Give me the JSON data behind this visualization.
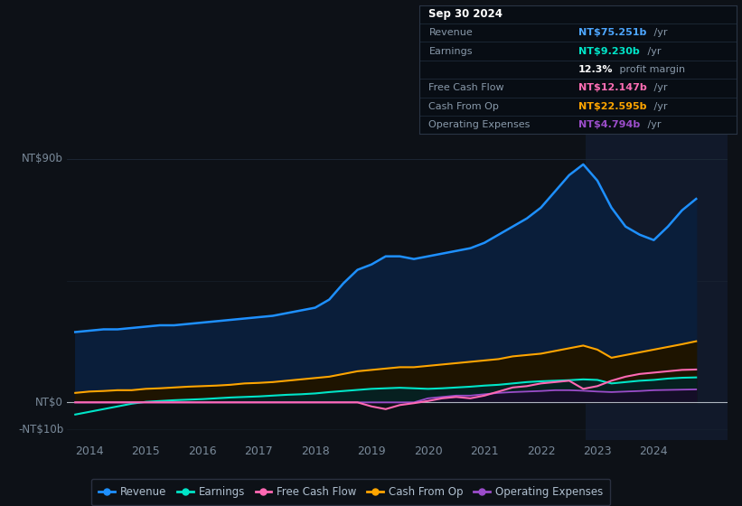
{
  "background_color": "#0d1117",
  "plot_bg_color": "#0d1117",
  "grid_color": "#1e2a38",
  "y_label_top": "NT$90b",
  "y_label_zero": "NT$0",
  "y_label_neg": "-NT$10b",
  "ylim": [
    -14,
    102
  ],
  "xlim_start": 2013.6,
  "xlim_end": 2025.3,
  "xticks": [
    2014,
    2015,
    2016,
    2017,
    2018,
    2019,
    2020,
    2021,
    2022,
    2023,
    2024
  ],
  "shaded_region_start": 2022.8,
  "shaded_region_end": 2025.4,
  "series_colors": {
    "revenue": "#1e90ff",
    "revenue_fill": "#0a1e3a",
    "earnings": "#00e5c8",
    "earnings_fill": "#062020",
    "free_cash_flow": "#ff69b4",
    "cash_from_op": "#ffa500",
    "cash_from_op_fill": "#1e1400",
    "operating_expenses": "#9b4dca"
  },
  "legend_labels": [
    "Revenue",
    "Earnings",
    "Free Cash Flow",
    "Cash From Op",
    "Operating Expenses"
  ],
  "info_rows": [
    {
      "label": "Sep 30 2024",
      "value": "",
      "value_color": "#ffffff",
      "header": true
    },
    {
      "label": "Revenue",
      "value": "NT$75.251b",
      "suffix": " /yr",
      "value_color": "#4da6ff"
    },
    {
      "label": "Earnings",
      "value": "NT$9.230b",
      "suffix": " /yr",
      "value_color": "#00e5c8"
    },
    {
      "label": "",
      "value": "12.3%",
      "suffix": " profit margin",
      "value_color": "#ffffff"
    },
    {
      "label": "Free Cash Flow",
      "value": "NT$12.147b",
      "suffix": " /yr",
      "value_color": "#ff6eb4"
    },
    {
      "label": "Cash From Op",
      "value": "NT$22.595b",
      "suffix": " /yr",
      "value_color": "#ffa500"
    },
    {
      "label": "Operating Expenses",
      "value": "NT$4.794b",
      "suffix": " /yr",
      "value_color": "#9b4dca"
    }
  ],
  "x": [
    2013.75,
    2014.0,
    2014.25,
    2014.5,
    2014.75,
    2015.0,
    2015.25,
    2015.5,
    2015.75,
    2016.0,
    2016.25,
    2016.5,
    2016.75,
    2017.0,
    2017.25,
    2017.5,
    2017.75,
    2018.0,
    2018.25,
    2018.5,
    2018.75,
    2019.0,
    2019.25,
    2019.5,
    2019.75,
    2020.0,
    2020.25,
    2020.5,
    2020.75,
    2021.0,
    2021.25,
    2021.5,
    2021.75,
    2022.0,
    2022.25,
    2022.5,
    2022.75,
    2023.0,
    2023.25,
    2023.5,
    2023.75,
    2024.0,
    2024.25,
    2024.5,
    2024.75
  ],
  "revenue": [
    26,
    26.5,
    27,
    27,
    27.5,
    28,
    28.5,
    28.5,
    29,
    29.5,
    30,
    30.5,
    31,
    31.5,
    32,
    33,
    34,
    35,
    38,
    44,
    49,
    51,
    54,
    54,
    53,
    54,
    55,
    56,
    57,
    59,
    62,
    65,
    68,
    72,
    78,
    84,
    88,
    82,
    72,
    65,
    62,
    60,
    65,
    71,
    75.25
  ],
  "earnings": [
    -4.5,
    -3.5,
    -2.5,
    -1.5,
    -0.5,
    0.2,
    0.5,
    0.8,
    1.0,
    1.2,
    1.5,
    1.8,
    2.0,
    2.2,
    2.5,
    2.8,
    3.0,
    3.3,
    3.8,
    4.2,
    4.6,
    5.0,
    5.2,
    5.4,
    5.2,
    5.0,
    5.2,
    5.5,
    5.8,
    6.2,
    6.5,
    7.0,
    7.5,
    7.8,
    8.0,
    8.2,
    8.5,
    8.3,
    7.0,
    7.5,
    8.0,
    8.3,
    8.8,
    9.1,
    9.23
  ],
  "free_cash_flow": [
    0,
    0,
    0,
    0,
    0,
    0,
    0,
    0,
    0,
    0,
    0,
    0,
    0,
    0,
    0,
    0,
    0,
    0,
    0,
    0,
    0,
    -1.5,
    -2.5,
    -1.0,
    -0.3,
    0.5,
    1.5,
    2.0,
    1.5,
    2.5,
    4.0,
    5.5,
    6.0,
    7.0,
    7.5,
    8.0,
    5.0,
    6.0,
    8.0,
    9.5,
    10.5,
    11.0,
    11.5,
    12.0,
    12.147
  ],
  "cash_from_op": [
    3.5,
    4.0,
    4.2,
    4.5,
    4.5,
    5.0,
    5.2,
    5.5,
    5.8,
    6.0,
    6.2,
    6.5,
    7.0,
    7.2,
    7.5,
    8.0,
    8.5,
    9.0,
    9.5,
    10.5,
    11.5,
    12.0,
    12.5,
    13.0,
    13.0,
    13.5,
    14.0,
    14.5,
    15.0,
    15.5,
    16.0,
    17.0,
    17.5,
    18.0,
    19.0,
    20.0,
    21.0,
    19.5,
    16.5,
    17.5,
    18.5,
    19.5,
    20.5,
    21.5,
    22.595
  ],
  "operating_expenses": [
    0,
    0,
    0,
    0,
    0,
    0,
    0,
    0,
    0,
    0,
    0,
    0,
    0,
    0,
    0,
    0,
    0,
    0,
    0,
    0,
    0,
    0,
    0,
    0,
    0,
    1.5,
    2.0,
    2.5,
    2.5,
    3.0,
    3.5,
    3.8,
    4.0,
    4.2,
    4.5,
    4.5,
    4.3,
    4.0,
    3.8,
    4.0,
    4.2,
    4.5,
    4.6,
    4.7,
    4.794
  ]
}
